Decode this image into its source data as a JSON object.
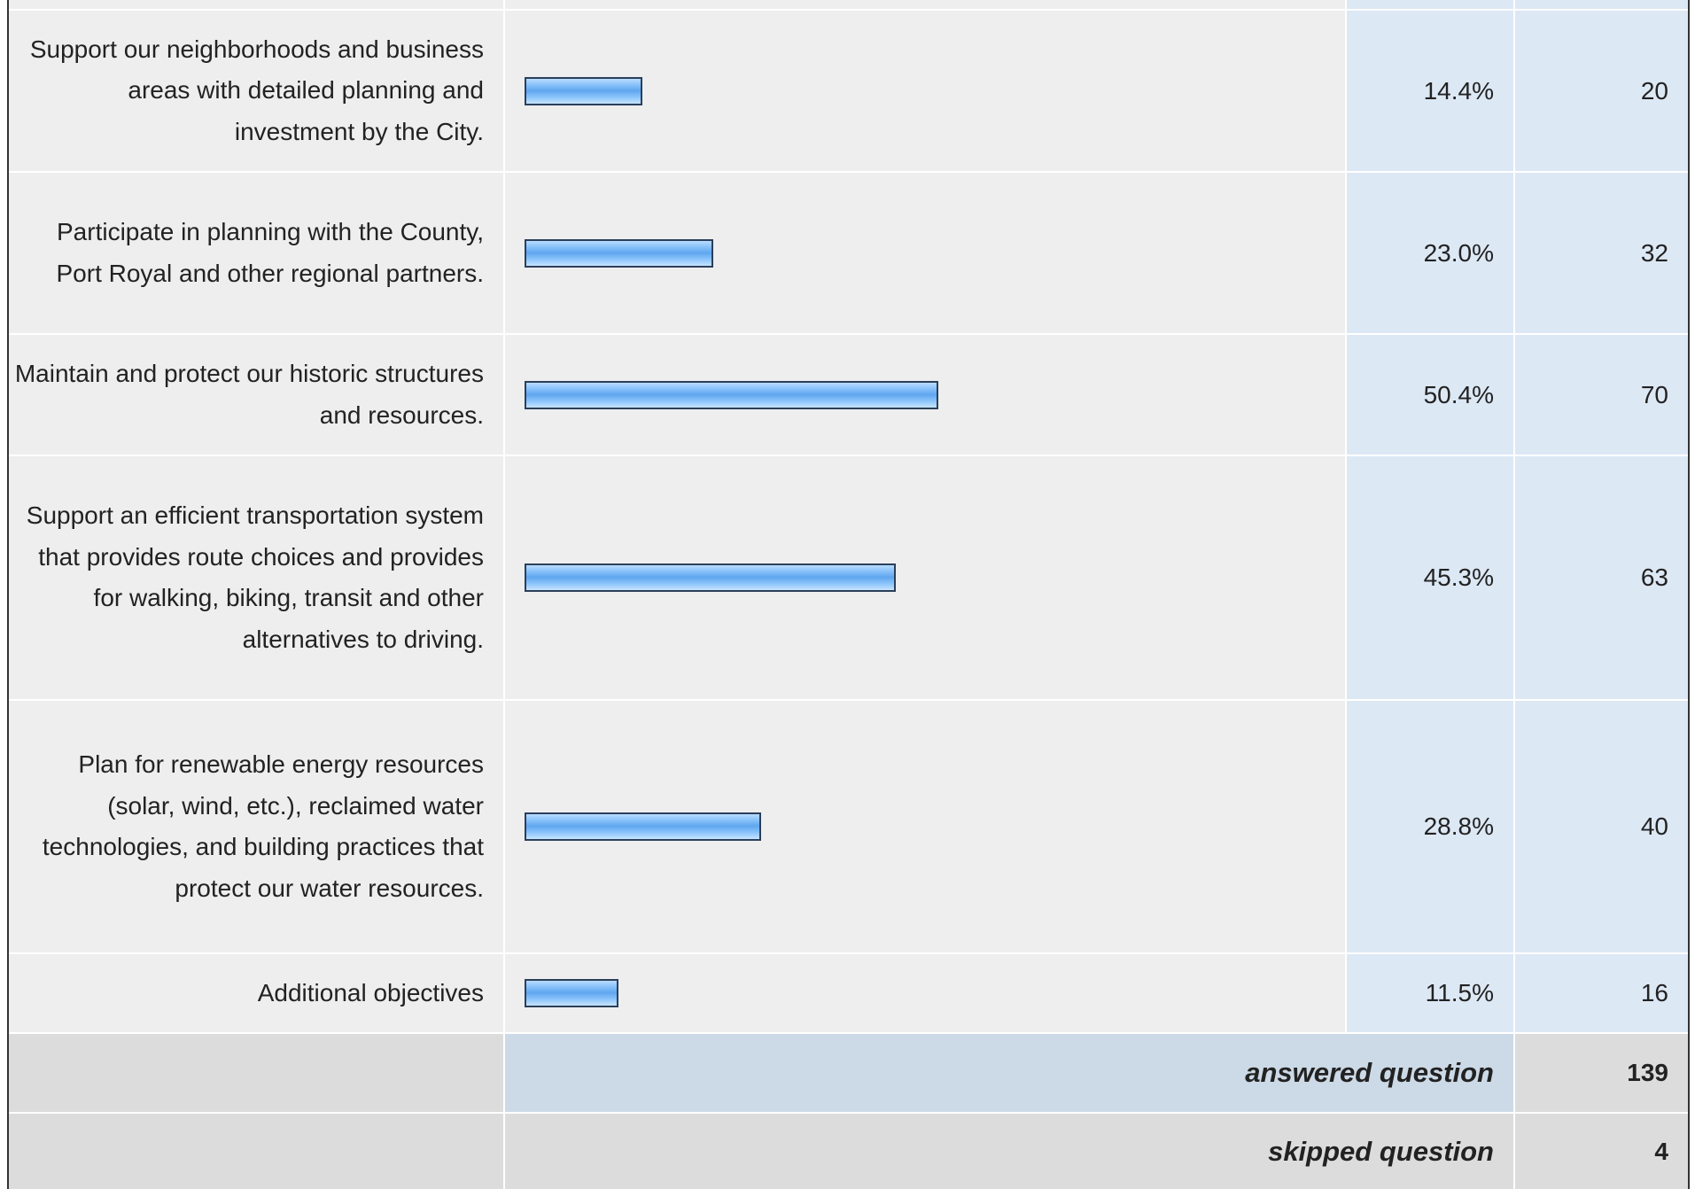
{
  "chart_data": {
    "type": "bar",
    "orientation": "horizontal",
    "categories": [
      "Support our neighborhoods and business areas with detailed planning and investment by the City.",
      "Participate in planning with the County, Port Royal and other regional partners.",
      "Maintain and protect our historic structures and resources.",
      "Support an efficient transportation system that provides route choices and provides for walking, biking, transit and other alternatives to driving.",
      "Plan for renewable energy resources (solar, wind, etc.), reclaimed water technologies, and building practices that protect our water resources.",
      "Additional objectives"
    ],
    "percent_labels": [
      "14.4%",
      "23.0%",
      "50.4%",
      "45.3%",
      "28.8%",
      "11.5%"
    ],
    "values": [
      14.4,
      23.0,
      50.4,
      45.3,
      28.8,
      11.5
    ],
    "counts": [
      20,
      32,
      70,
      63,
      40,
      16
    ],
    "xlim": [
      0,
      100
    ],
    "bar_color": "#7fbaf5",
    "grid": false
  },
  "summary": {
    "answered_label": "answered question",
    "answered_value": "139",
    "skipped_label": "skipped question",
    "skipped_value": "4"
  }
}
